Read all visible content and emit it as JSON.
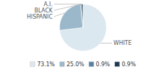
{
  "chart_data": {
    "type": "pie",
    "categories": [
      "WHITE",
      "HISPANIC",
      "BLACK",
      "A.I."
    ],
    "values": [
      73.1,
      25.0,
      0.9,
      0.9
    ],
    "value_labels": [
      "73.1%",
      "25.0%",
      "0.9%",
      "0.9%"
    ],
    "colors": [
      "#dce8f0",
      "#9bb8cb",
      "#5b7f9e",
      "#1e3a52"
    ],
    "legend": "bottom"
  }
}
